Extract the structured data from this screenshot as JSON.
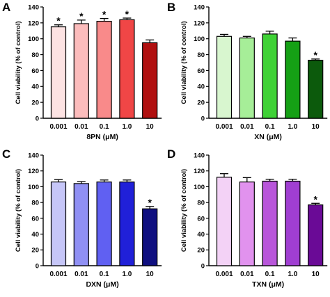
{
  "chart_data": [
    {
      "type": "bar",
      "panel": "A",
      "categories": [
        "0.001",
        "0.01",
        "0.1",
        "1.0",
        "10"
      ],
      "values": [
        115,
        119,
        122,
        124,
        95
      ],
      "errors": [
        2.5,
        4.5,
        3.5,
        2,
        3.5
      ],
      "significant": [
        true,
        true,
        true,
        true,
        false
      ],
      "significance_marker": "*",
      "colors": [
        "#fde3e3",
        "#fcbcbc",
        "#f98a8a",
        "#f04646",
        "#b01010"
      ],
      "xlabel": "8PN (μM)",
      "ylabel": "Cell viability (% of control)",
      "yticks": [
        "0",
        "20",
        "40",
        "60",
        "80",
        "100",
        "120",
        "140"
      ],
      "ylim": [
        0,
        140
      ]
    },
    {
      "type": "bar",
      "panel": "B",
      "categories": [
        "0.001",
        "0.01",
        "0.1",
        "1.0",
        "10"
      ],
      "values": [
        103,
        101,
        106,
        97,
        73
      ],
      "errors": [
        2.5,
        2,
        3.5,
        4,
        1.5
      ],
      "significant": [
        false,
        false,
        false,
        false,
        true
      ],
      "significance_marker": "*",
      "colors": [
        "#d8f6cf",
        "#a6ee98",
        "#3fd136",
        "#15a015",
        "#0c5a0c"
      ],
      "xlabel": "XN (μM)",
      "ylabel": "Cell viability (% of control)",
      "yticks": [
        "0",
        "20",
        "40",
        "60",
        "80",
        "100",
        "120",
        "140"
      ],
      "ylim": [
        0,
        140
      ]
    },
    {
      "type": "bar",
      "panel": "C",
      "categories": [
        "0.001",
        "0.01",
        "0.1",
        "1.0",
        "10"
      ],
      "values": [
        106,
        104,
        106,
        106,
        72
      ],
      "errors": [
        3,
        2.5,
        2.5,
        2.5,
        3
      ],
      "significant": [
        false,
        false,
        false,
        false,
        true
      ],
      "significance_marker": "*",
      "colors": [
        "#c6c6f8",
        "#9090f4",
        "#6060f2",
        "#2020d8",
        "#101080"
      ],
      "xlabel": "DXN (μM)",
      "ylabel": "Cell viability (% of control)",
      "yticks": [
        "0",
        "20",
        "40",
        "60",
        "80",
        "100",
        "120",
        "140"
      ],
      "ylim": [
        0,
        140
      ]
    },
    {
      "type": "bar",
      "panel": "D",
      "categories": [
        "0.001",
        "0.01",
        "0.1",
        "1.0",
        "10"
      ],
      "values": [
        112,
        106,
        107,
        107,
        77
      ],
      "errors": [
        4.5,
        5.5,
        2.5,
        2.5,
        2
      ],
      "significant": [
        false,
        false,
        false,
        false,
        true
      ],
      "significance_marker": "*",
      "colors": [
        "#f3d2f6",
        "#e192ee",
        "#b856da",
        "#a03ed2",
        "#6a0a96"
      ],
      "xlabel": "TXN (μM)",
      "ylabel": "Cell viability (% of control)",
      "yticks": [
        "0",
        "20",
        "40",
        "60",
        "80",
        "100",
        "120",
        "140"
      ],
      "ylim": [
        0,
        140
      ]
    }
  ]
}
